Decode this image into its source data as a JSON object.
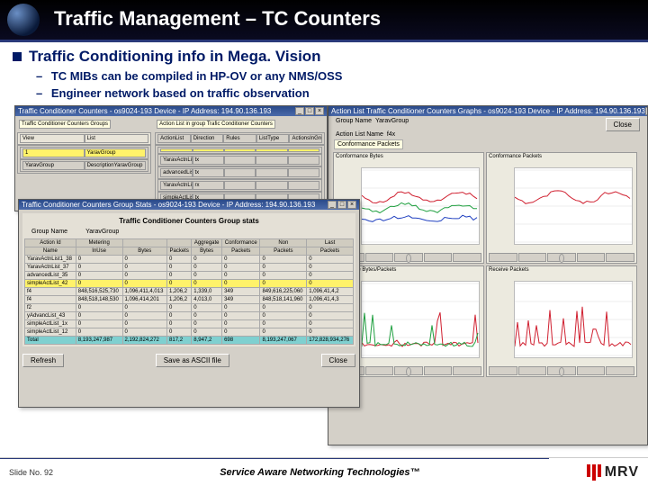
{
  "slide": {
    "title": "Traffic Management – TC Counters",
    "bullet": "Traffic Conditioning info in Mega. Vision",
    "sub1": "TC MIBs can be compiled in HP-OV or any NMS/OSS",
    "sub2": "Engineer network based on traffic observation",
    "footer_slide": "Slide No. 92",
    "footer_mid": "Service Aware Networking Technologies™",
    "logo_text": "MRV"
  },
  "winA": {
    "title": "Traffic Conditioner Counters - os9024-193 Device - IP Address: 194.90.136.193",
    "left_panel_label": "Traffic Conditioner Counters Groups",
    "right_panel_label": "Action List in group  Trafic Conditioner Counters",
    "left_cols": [
      "View",
      "List"
    ],
    "left_rows": [
      [
        "1",
        "YaravGroup"
      ],
      [
        "YaravGroup",
        "DescriptionYaravGroup"
      ]
    ],
    "right_cols": [
      "ActionList",
      "Direction",
      "Rules",
      "ListType",
      "ActionsInGroup"
    ],
    "right_rows": [
      [
        " ",
        " ",
        " ",
        " ",
        " "
      ],
      [
        "YaravActnList1_38",
        "tx",
        " ",
        " ",
        " "
      ],
      [
        "advancedList_35",
        "tx",
        " ",
        " ",
        " "
      ],
      [
        "YaravActnList_37",
        "rx",
        " ",
        " ",
        " "
      ],
      [
        "simpleActList_42",
        "tx",
        " ",
        " ",
        " "
      ],
      [
        "f4",
        "tx",
        " ",
        " ",
        " "
      ]
    ]
  },
  "winB": {
    "title": "Traffic Conditioner Counters Group Stats - os9024-193 Device - IP Address: 194.90.136.193",
    "heading": "Traffic Conditioner Counters Group stats",
    "group_name_label": "Group Name",
    "group_name_value": "YaravGroup",
    "cols": [
      "Action Id",
      "Metering",
      " ",
      " ",
      "Aggregate",
      "Conformance",
      "Non",
      "Last"
    ],
    "sub_cols": [
      "Name",
      "InUse",
      "Bytes",
      "Packets",
      "Bytes",
      "Packets",
      "Packets",
      "Packets"
    ],
    "rows": [
      [
        "YaravActnList1_38",
        "0",
        "0",
        "0",
        "0",
        "0",
        "0",
        "0"
      ],
      [
        "YaravActnList_37",
        "0",
        "0",
        "0",
        "0",
        "0",
        "0",
        "0"
      ],
      [
        "advancedList_35",
        "0",
        "0",
        "0",
        "0",
        "0",
        "0",
        "0"
      ],
      [
        "simpleActList_42",
        "0",
        "0",
        "0",
        "0",
        "0",
        "0",
        "0"
      ],
      [
        "f4",
        "848,516,525,730",
        "1,096,411,4,013",
        "1,206,2",
        "1,339,0",
        "349",
        "849,616,225,060",
        "1,096,41,4,2"
      ],
      [
        "f4",
        "848,518,148,530",
        "1,096,414,201",
        "1,206,2",
        "4,013,0",
        "349",
        "848,518,141,960",
        "1,096,41,4,3"
      ],
      [
        "f2",
        "0",
        "0",
        "0",
        "0",
        "0",
        "0",
        "0"
      ],
      [
        "yAdvancList_43",
        "0",
        "0",
        "0",
        "0",
        "0",
        "0",
        "0"
      ],
      [
        "simpleActList_1x",
        "0",
        "0",
        "0",
        "0",
        "0",
        "0",
        "0"
      ],
      [
        "simpleActList_12",
        "0",
        "0",
        "0",
        "0",
        "0",
        "0",
        "0"
      ],
      [
        "Total",
        "8,193,247,987",
        "2,192,824,272",
        "817,2",
        "8,947,2",
        "698",
        "8,193,247,067",
        "172,828,934,276"
      ]
    ],
    "btn_refresh": "Refresh",
    "btn_save": "Save as ASCII file",
    "btn_close": "Close"
  },
  "winC": {
    "title": "Action List Traffic Conditioner Counters Graphs - os9024-193 Device - IP Address: 194.90.136.193",
    "heading": "Action List Traffic Conditioner Counters Graphs",
    "group_name_label": "Group Name",
    "group_name_value": "YaravGroup",
    "acl_label": "Action List Name",
    "acl_value": "f4x",
    "btn_close": "Close",
    "section_label": "Conformance Packets",
    "panels": [
      {
        "title": "Conformance Bytes",
        "series_colors": [
          "#d02030",
          "#20a040",
          "#2040c0"
        ]
      },
      {
        "title": "Conformance Packets",
        "series_colors": [
          "#d02030"
        ]
      },
      {
        "title": "Aggregate Bytes/Packets",
        "series_colors": [
          "#d02030",
          "#20a040"
        ]
      },
      {
        "title": "Receive Packets",
        "series_colors": [
          "#d02030"
        ]
      }
    ]
  },
  "colors": {
    "title_bg": "#000000",
    "accent": "#2a3a7a",
    "win_bg": "#d4d0c8",
    "highlight": "#fff26a",
    "aqua": "#7fd0d0",
    "logo_red": "#c00"
  }
}
